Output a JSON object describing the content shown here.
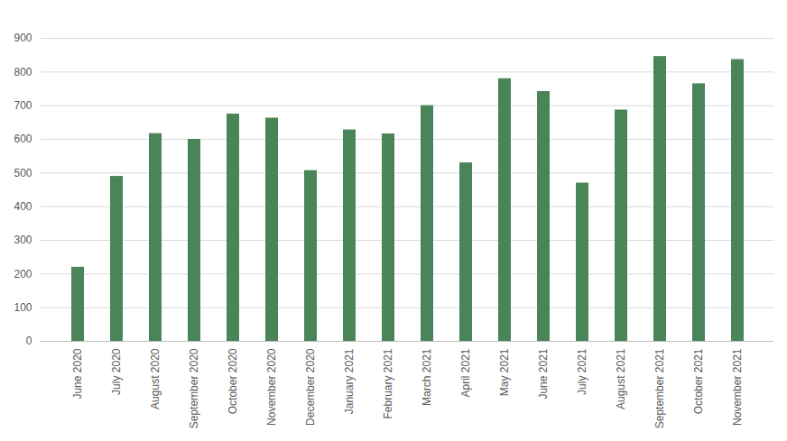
{
  "chart_data": {
    "type": "bar",
    "categories": [
      "June 2020",
      "July 2020",
      "August 2020",
      "September 2020",
      "October 2020",
      "November 2020",
      "December 2020",
      "January 2021",
      "February 2021",
      "March 2021",
      "April 2021",
      "May 2021",
      "June 2021",
      "July 2021",
      "August 2021",
      "September 2021",
      "October 2021",
      "November 2021"
    ],
    "values": [
      220,
      490,
      617,
      600,
      675,
      663,
      507,
      628,
      616,
      700,
      530,
      780,
      742,
      470,
      687,
      846,
      765,
      837
    ],
    "color": "#4a8559",
    "ylim": [
      0,
      900
    ],
    "yticks": [
      0,
      100,
      200,
      300,
      400,
      500,
      600,
      700,
      800,
      900
    ],
    "grid": true
  }
}
